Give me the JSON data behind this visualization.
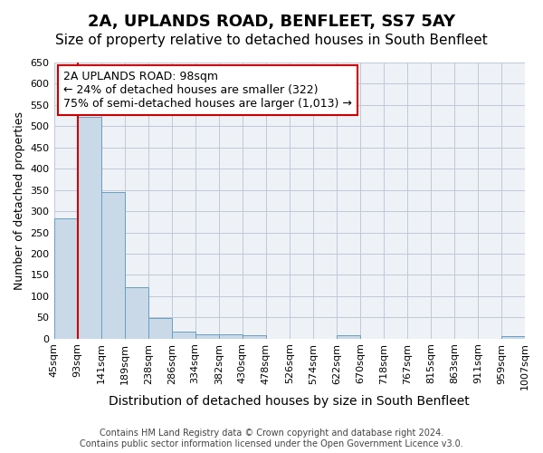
{
  "title": "2A, UPLANDS ROAD, BENFLEET, SS7 5AY",
  "subtitle": "Size of property relative to detached houses in South Benfleet",
  "xlabel": "Distribution of detached houses by size in South Benfleet",
  "ylabel": "Number of detached properties",
  "footer_line1": "Contains HM Land Registry data © Crown copyright and database right 2024.",
  "footer_line2": "Contains public sector information licensed under the Open Government Licence v3.0.",
  "bin_labels": [
    "45sqm",
    "93sqm",
    "141sqm",
    "189sqm",
    "238sqm",
    "286sqm",
    "334sqm",
    "382sqm",
    "430sqm",
    "478sqm",
    "526sqm",
    "574sqm",
    "622sqm",
    "670sqm",
    "718sqm",
    "767sqm",
    "815sqm",
    "863sqm",
    "911sqm",
    "959sqm",
    "1007sqm"
  ],
  "bar_heights": [
    283,
    521,
    344,
    120,
    48,
    16,
    10,
    10,
    7,
    0,
    0,
    0,
    7,
    0,
    0,
    0,
    0,
    0,
    0,
    5
  ],
  "bar_color": "#c9d9e8",
  "bar_edge_color": "#6a9ec0",
  "grid_color": "#c0c8d8",
  "background_color": "#eef2f7",
  "vline_x": 1,
  "vline_color": "#cc0000",
  "annotation_text": "2A UPLANDS ROAD: 98sqm\n← 24% of detached houses are smaller (322)\n75% of semi-detached houses are larger (1,013) →",
  "annotation_box_color": "#ffffff",
  "annotation_box_edge": "#cc0000",
  "ylim": [
    0,
    650
  ],
  "yticks": [
    0,
    50,
    100,
    150,
    200,
    250,
    300,
    350,
    400,
    450,
    500,
    550,
    600,
    650
  ],
  "title_fontsize": 13,
  "subtitle_fontsize": 11,
  "xlabel_fontsize": 10,
  "ylabel_fontsize": 9,
  "tick_fontsize": 8,
  "annotation_fontsize": 9
}
